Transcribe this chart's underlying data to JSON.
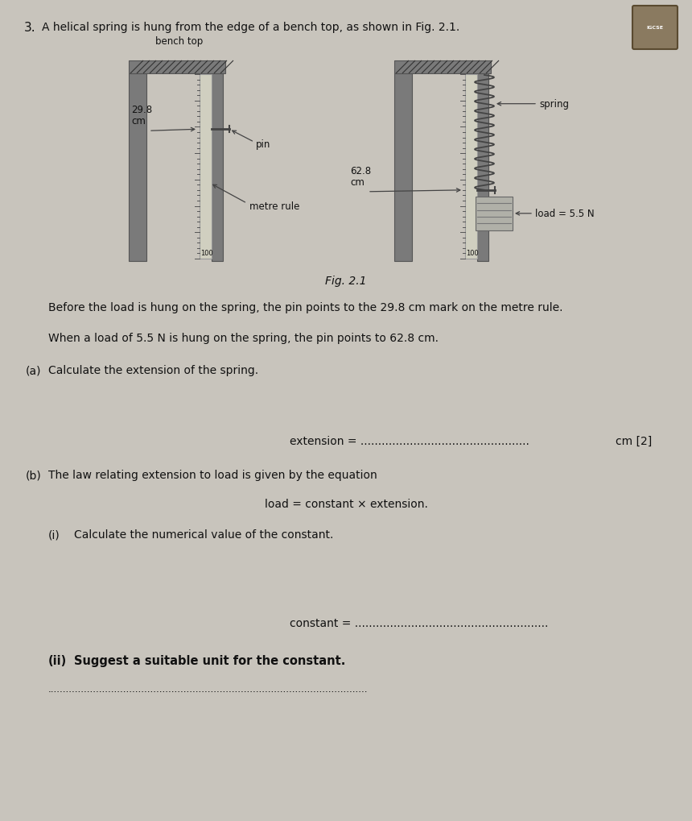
{
  "bg_color": "#c8c4bc",
  "paper_color": "#d8d5ce",
  "title_num": "3.",
  "title_text": "A helical spring is hung from the edge of a bench top, as shown in Fig. 2.1.",
  "fig_caption": "Fig. 2.1",
  "before_text": "Before the load is hung on the spring, the pin points to the 29.8 cm mark on the metre rule.",
  "when_text": "When a load of 5.5 N is hung on the spring, the pin points to 62.8 cm.",
  "part_a_label": "(a)",
  "part_a_text": "Calculate the extension of the spring.",
  "extension_line_left": "extension = ................................................",
  "extension_line_right": "cm [2]",
  "part_b_label": "(b)",
  "part_b_text": "The law relating extension to load is given by the equation",
  "equation_text": "load = constant × extension.",
  "part_bi_label": "(i)",
  "part_bi_text": "Calculate the numerical value of the constant.",
  "constant_line": "constant = .......................................................",
  "part_bii_label": "(ii)",
  "part_bii_text": "Suggest a suitable unit for the constant.",
  "dotted_line": "..........................................................................................................",
  "bench_top_label": "bench top",
  "pin_label": "pin",
  "metre_rule_label": "metre rule",
  "spring_label": "spring",
  "load_label": "load = 5.5 N",
  "mark_298": "29.8\ncm",
  "mark_628": "62.8\ncm",
  "mark_100_left": "100",
  "mark_100_right": "100"
}
